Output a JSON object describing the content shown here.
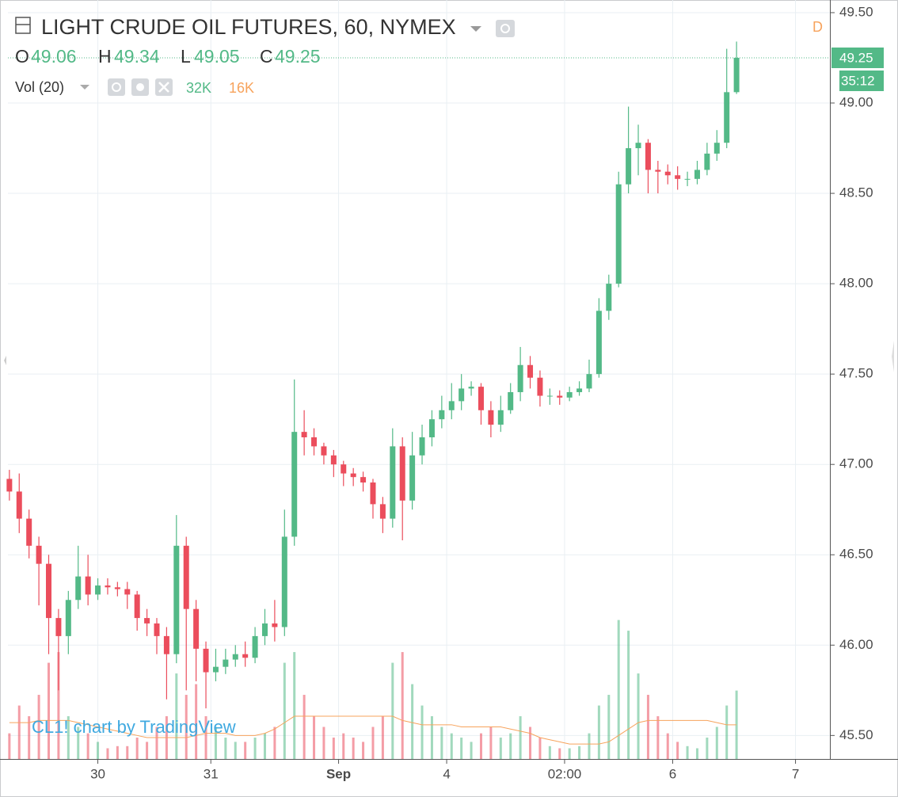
{
  "chart_data": {
    "type": "candlestick",
    "title": "LIGHT CRUDE OIL FUTURES, 60, NYMEX",
    "ohlc_labels": [
      "O",
      "H",
      "L",
      "C"
    ],
    "volume_title": "Vol (20)",
    "volume_label": "32K",
    "volume_ma_label": "16K",
    "interval_badge": "D",
    "countdown": "35:12",
    "watermark": "CL1! chart by TradingView",
    "up_color": "#53b987",
    "down_color": "#eb4d5c",
    "volume_ma_color": "#f7a35c",
    "grid": true,
    "x": [
      0,
      2,
      4,
      6,
      8,
      10,
      12,
      14,
      16,
      18,
      20,
      22,
      24,
      26,
      28,
      30,
      32,
      34,
      36,
      38,
      40,
      42,
      44,
      46,
      48,
      50,
      52,
      54,
      56,
      58,
      60,
      62,
      64,
      66,
      68,
      70,
      72,
      74,
      76,
      78,
      80,
      82,
      84,
      86,
      88,
      90,
      92,
      94,
      96,
      98,
      100,
      102,
      104,
      106,
      108,
      110,
      112,
      114,
      116,
      118,
      120,
      122,
      124,
      126,
      128,
      130,
      132,
      134,
      136,
      138,
      140,
      142,
      144,
      146,
      148
    ],
    "open": [
      46.92,
      46.85,
      46.7,
      46.55,
      46.45,
      46.15,
      46.05,
      46.25,
      46.38,
      46.28,
      46.33,
      46.32,
      46.31,
      46.28,
      46.15,
      46.12,
      46.05,
      45.95,
      46.55,
      46.2,
      45.98,
      45.85,
      45.88,
      45.92,
      45.95,
      45.93,
      46.05,
      46.12,
      46.1,
      46.6,
      47.18,
      47.15,
      47.1,
      47.05,
      47.0,
      46.95,
      46.93,
      46.9,
      46.78,
      46.7,
      47.1,
      46.8,
      47.05,
      47.15,
      47.25,
      47.3,
      47.35,
      47.42,
      47.43,
      47.3,
      47.22,
      47.3,
      47.4,
      47.55,
      47.48,
      47.38,
      47.38,
      47.37,
      47.4,
      47.42,
      47.5,
      47.85,
      48.0,
      48.55,
      48.75,
      48.78,
      48.63,
      48.62,
      48.6,
      48.58,
      48.58,
      48.63,
      48.72,
      48.78,
      49.06
    ],
    "high": [
      46.97,
      46.95,
      46.75,
      46.6,
      46.5,
      46.2,
      46.3,
      46.55,
      46.5,
      46.37,
      46.37,
      46.35,
      46.35,
      46.3,
      46.2,
      46.15,
      46.1,
      46.72,
      46.6,
      46.25,
      46.02,
      45.98,
      45.98,
      46.0,
      46.02,
      46.1,
      46.2,
      46.25,
      46.75,
      47.47,
      47.3,
      47.2,
      47.12,
      47.08,
      47.02,
      46.98,
      46.96,
      46.92,
      46.82,
      47.2,
      47.15,
      47.18,
      47.22,
      47.3,
      47.38,
      47.45,
      47.5,
      47.46,
      47.45,
      47.35,
      47.38,
      47.45,
      47.65,
      47.6,
      47.52,
      47.42,
      47.41,
      47.43,
      47.46,
      47.58,
      47.92,
      48.05,
      48.62,
      48.98,
      48.88,
      48.8,
      48.68,
      48.66,
      48.65,
      48.62,
      48.68,
      48.78,
      48.85,
      49.3,
      49.34
    ],
    "low": [
      46.8,
      46.62,
      46.48,
      46.22,
      45.95,
      45.75,
      45.95,
      46.2,
      46.22,
      46.25,
      46.28,
      46.27,
      46.2,
      46.08,
      46.05,
      45.95,
      45.7,
      45.9,
      45.75,
      45.8,
      45.65,
      45.8,
      45.84,
      45.88,
      45.88,
      45.9,
      46.0,
      46.02,
      46.05,
      46.55,
      47.05,
      47.05,
      47.0,
      46.93,
      46.88,
      46.88,
      46.85,
      46.7,
      46.62,
      46.65,
      46.58,
      46.75,
      47.0,
      47.1,
      47.2,
      47.25,
      47.3,
      47.38,
      47.22,
      47.15,
      47.18,
      47.28,
      47.35,
      47.42,
      47.32,
      47.33,
      47.33,
      47.35,
      47.38,
      47.4,
      47.48,
      47.8,
      47.98,
      48.5,
      48.6,
      48.5,
      48.5,
      48.55,
      48.52,
      48.54,
      48.55,
      48.6,
      48.68,
      48.75,
      49.05
    ],
    "close": [
      46.85,
      46.7,
      46.55,
      46.45,
      46.15,
      46.05,
      46.25,
      46.38,
      46.28,
      46.33,
      46.32,
      46.31,
      46.28,
      46.15,
      46.12,
      46.05,
      45.95,
      46.55,
      46.2,
      45.98,
      45.85,
      45.88,
      45.92,
      45.95,
      45.93,
      46.05,
      46.12,
      46.1,
      46.6,
      47.18,
      47.15,
      47.1,
      47.05,
      47.0,
      46.95,
      46.93,
      46.9,
      46.78,
      46.7,
      47.1,
      46.8,
      47.05,
      47.15,
      47.25,
      47.3,
      47.35,
      47.42,
      47.43,
      47.3,
      47.22,
      47.3,
      47.4,
      47.55,
      47.48,
      47.38,
      47.38,
      47.37,
      47.4,
      47.42,
      47.5,
      47.85,
      48.0,
      48.55,
      48.75,
      48.78,
      48.63,
      48.62,
      48.6,
      48.58,
      48.58,
      48.63,
      48.72,
      48.78,
      49.06,
      49.25
    ],
    "volume": [
      12,
      25,
      20,
      30,
      45,
      50,
      20,
      15,
      12,
      8,
      5,
      6,
      6,
      10,
      8,
      15,
      20,
      40,
      30,
      35,
      20,
      15,
      10,
      8,
      8,
      10,
      12,
      15,
      45,
      50,
      30,
      20,
      15,
      10,
      12,
      10,
      8,
      15,
      20,
      45,
      50,
      35,
      25,
      20,
      15,
      12,
      10,
      8,
      12,
      15,
      10,
      12,
      20,
      15,
      10,
      6,
      5,
      5,
      6,
      12,
      25,
      30,
      65,
      60,
      40,
      30,
      20,
      12,
      8,
      6,
      5,
      10,
      15,
      25,
      32
    ],
    "volume_ma": [
      17,
      17,
      17,
      18,
      18,
      18,
      18,
      17,
      16,
      15,
      14,
      13,
      12,
      11,
      10,
      10,
      10,
      10,
      10,
      11,
      12,
      12,
      12,
      11,
      11,
      11,
      12,
      14,
      17,
      20,
      20,
      20,
      20,
      20,
      20,
      20,
      20,
      20,
      20,
      20,
      18,
      17,
      16,
      16,
      16,
      16,
      15,
      15,
      15,
      15,
      15,
      14,
      13,
      12,
      10,
      9,
      8,
      7,
      7,
      7,
      7,
      8,
      11,
      14,
      17,
      18,
      18,
      18,
      18,
      18,
      18,
      18,
      17,
      16,
      16
    ],
    "vol_ylim": [
      0,
      355
    ],
    "xlim": [
      -0.3,
      167
    ],
    "ylim": [
      45.37,
      49.57
    ],
    "yticks": [
      {
        "value": 45.5,
        "label": "45.50"
      },
      {
        "value": 46,
        "label": "46.00"
      },
      {
        "value": 46.5,
        "label": "46.50"
      },
      {
        "value": 47,
        "label": "47.00"
      },
      {
        "value": 47.5,
        "label": "47.50"
      },
      {
        "value": 48,
        "label": "48.00"
      },
      {
        "value": 48.5,
        "label": "48.50"
      },
      {
        "value": 49,
        "label": "49.00"
      },
      {
        "value": 49.5,
        "label": "49.50"
      }
    ],
    "xticks": [
      {
        "value": 18,
        "label": "30"
      },
      {
        "value": 41,
        "label": "31"
      },
      {
        "value": 67,
        "label": "Sep"
      },
      {
        "value": 89,
        "label": "4"
      },
      {
        "value": 113,
        "label": "02:00"
      },
      {
        "value": 135,
        "label": "6"
      },
      {
        "value": 160,
        "label": "7"
      }
    ]
  }
}
